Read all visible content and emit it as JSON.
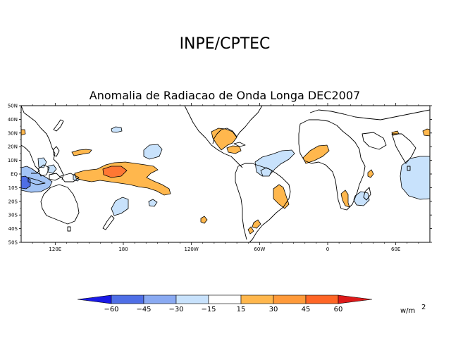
{
  "header": {
    "institution": "INPE/CPTEC",
    "title": "Anomalia de Radiacao de Onda Longa DEC2007"
  },
  "map": {
    "lat_labels": [
      "50N",
      "40N",
      "30N",
      "20N",
      "10N",
      "EQ",
      "10S",
      "20S",
      "30S",
      "40S",
      "50S"
    ],
    "lat_values": [
      50,
      40,
      30,
      20,
      10,
      0,
      -10,
      -20,
      -30,
      -40,
      -50
    ],
    "lon_labels": [
      "120E",
      "180",
      "120W",
      "60W",
      "0",
      "60E"
    ],
    "lon_values": [
      120,
      180,
      240,
      300,
      360,
      420
    ],
    "lon_range": [
      90,
      450
    ],
    "lat_range": [
      -50,
      50
    ],
    "anomaly_regions": [
      {
        "name": "w-pacific-negative-core",
        "level": -45,
        "color": "#4f6fe6"
      },
      {
        "name": "w-pacific-negative",
        "level": -30,
        "color": "#a3c4f6"
      },
      {
        "name": "china-negative",
        "level": -15,
        "color": "#c8e2fc"
      },
      {
        "name": "philippine-sea-positive",
        "level": 15,
        "color": "#ffb74d"
      },
      {
        "name": "tropical-pacific-positive",
        "level": 15,
        "color": "#ffb74d"
      },
      {
        "name": "tropical-pacific-positive-core",
        "level": 30,
        "color": "#ff7733"
      },
      {
        "name": "central-pacific-negative",
        "level": -15,
        "color": "#c8e2fc"
      },
      {
        "name": "south-pacific-negative",
        "level": -15,
        "color": "#c8e2fc"
      },
      {
        "name": "mexico-positive",
        "level": 15,
        "color": "#ffb74d"
      },
      {
        "name": "atlantic-negative",
        "level": -15,
        "color": "#c8e2fc"
      },
      {
        "name": "amazon-negative",
        "level": -15,
        "color": "#c8e2fc"
      },
      {
        "name": "brazil-positive",
        "level": 15,
        "color": "#ffb74d"
      },
      {
        "name": "west-africa-positive",
        "level": 15,
        "color": "#ffb74d"
      },
      {
        "name": "southern-africa-positive",
        "level": 15,
        "color": "#ffb74d"
      },
      {
        "name": "indian-ocean-negative",
        "level": -15,
        "color": "#c8e2fc"
      }
    ]
  },
  "colorbar": {
    "labels": [
      "-60",
      "-45",
      "-30",
      "-15",
      "15",
      "30",
      "45",
      "60"
    ],
    "colors": [
      "#1a1ae6",
      "#4f6fe6",
      "#8aaaf2",
      "#c8e2fc",
      "#ffffff",
      "#ffb74d",
      "#ff9a3a",
      "#ff6626",
      "#dd1a1a"
    ],
    "unit": "w/m",
    "unit_exp": "2"
  }
}
